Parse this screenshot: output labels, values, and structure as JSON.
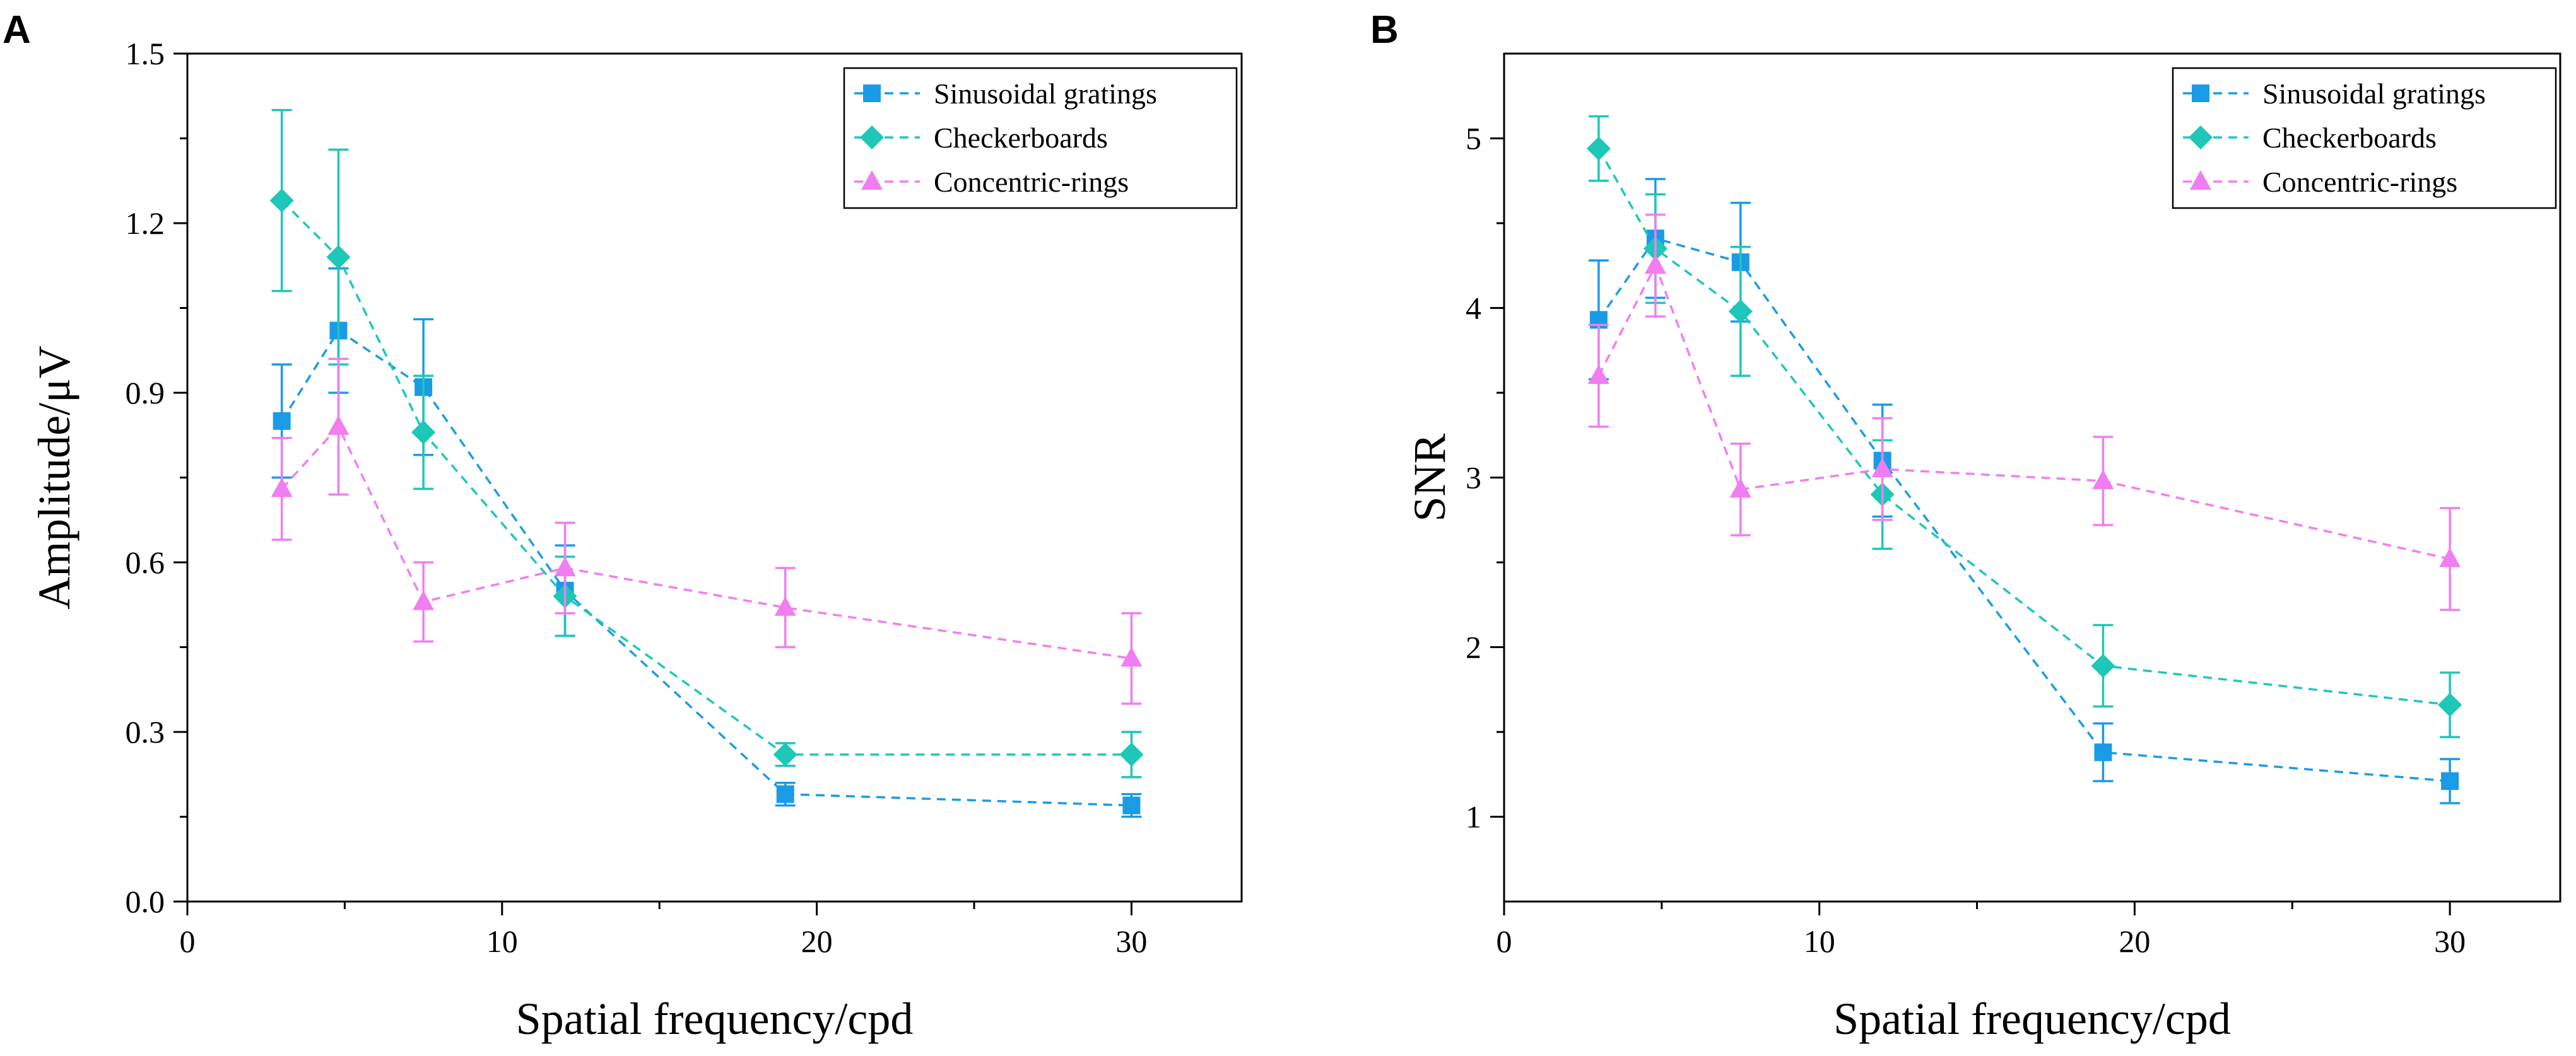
{
  "colors": {
    "sinusoidal": "#1a9be6",
    "checkerboard": "#1ec7b8",
    "concentric": "#f07ef0",
    "axis": "#000000",
    "background": "#ffffff"
  },
  "chart_data": [
    {
      "type": "line",
      "panel": "A",
      "xlabel": "Spatial frequency/cpd",
      "ylabel": "Amplitude/μV",
      "xlim": [
        0,
        33.5
      ],
      "ylim": [
        0,
        1.5
      ],
      "xticks": [
        0,
        10,
        20,
        30
      ],
      "yticks": [
        0.0,
        0.3,
        0.6,
        0.9,
        1.2,
        1.5
      ],
      "xtick_labels": [
        "0",
        "10",
        "20",
        "30"
      ],
      "ytick_labels": [
        "0.0",
        "0.3",
        "0.6",
        "0.9",
        "1.2",
        "1.5"
      ],
      "legend_position": "top-right",
      "grid": false,
      "series": [
        {
          "name": "Sinusoidal gratings",
          "marker": "square",
          "color": "#1a9be6",
          "x": [
            3,
            4.8,
            7.5,
            12,
            19,
            30
          ],
          "y": [
            0.85,
            1.01,
            0.91,
            0.55,
            0.19,
            0.17
          ],
          "err": [
            0.1,
            0.11,
            0.12,
            0.08,
            0.02,
            0.02
          ]
        },
        {
          "name": "Checkerboards",
          "marker": "diamond",
          "color": "#1ec7b8",
          "x": [
            3,
            4.8,
            7.5,
            12,
            19,
            30
          ],
          "y": [
            1.24,
            1.14,
            0.83,
            0.54,
            0.26,
            0.26
          ],
          "err": [
            0.16,
            0.19,
            0.1,
            0.07,
            0.02,
            0.04
          ]
        },
        {
          "name": "Concentric-rings",
          "marker": "triangle",
          "color": "#f07ef0",
          "x": [
            3,
            4.8,
            7.5,
            12,
            19,
            30
          ],
          "y": [
            0.73,
            0.84,
            0.53,
            0.59,
            0.52,
            0.43
          ],
          "err": [
            0.09,
            0.12,
            0.07,
            0.08,
            0.07,
            0.08
          ]
        }
      ]
    },
    {
      "type": "line",
      "panel": "B",
      "xlabel": "Spatial frequency/cpd",
      "ylabel": "SNR",
      "xlim": [
        0,
        33.5
      ],
      "ylim": [
        0.5,
        5.5
      ],
      "xticks": [
        0,
        10,
        20,
        30
      ],
      "yticks": [
        1,
        2,
        3,
        4,
        5
      ],
      "xtick_labels": [
        "0",
        "10",
        "20",
        "30"
      ],
      "ytick_labels": [
        "1",
        "2",
        "3",
        "4",
        "5"
      ],
      "legend_position": "top-right",
      "grid": false,
      "series": [
        {
          "name": "Sinusoidal gratings",
          "marker": "square",
          "color": "#1a9be6",
          "x": [
            3,
            4.8,
            7.5,
            12,
            19,
            30
          ],
          "y": [
            3.93,
            4.41,
            4.27,
            3.1,
            1.38,
            1.21
          ],
          "err": [
            0.35,
            0.35,
            0.35,
            0.33,
            0.17,
            0.13
          ]
        },
        {
          "name": "Checkerboards",
          "marker": "diamond",
          "color": "#1ec7b8",
          "x": [
            3,
            4.8,
            7.5,
            12,
            19,
            30
          ],
          "y": [
            4.94,
            4.35,
            3.98,
            2.9,
            1.89,
            1.66
          ],
          "err": [
            0.19,
            0.32,
            0.38,
            0.32,
            0.24,
            0.19
          ]
        },
        {
          "name": "Concentric-rings",
          "marker": "triangle",
          "color": "#f07ef0",
          "x": [
            3,
            4.8,
            7.5,
            12,
            19,
            30
          ],
          "y": [
            3.6,
            4.25,
            2.93,
            3.05,
            2.98,
            2.52
          ],
          "err": [
            0.3,
            0.3,
            0.27,
            0.3,
            0.26,
            0.3
          ]
        }
      ]
    }
  ]
}
